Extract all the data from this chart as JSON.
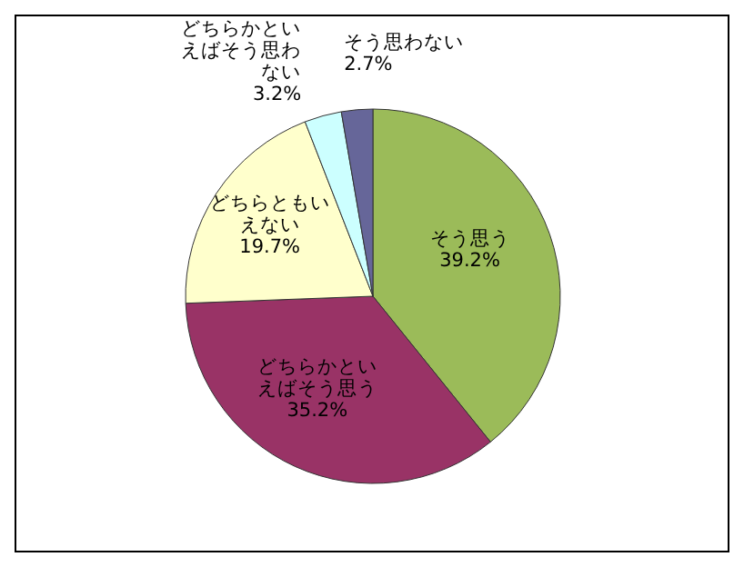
{
  "chart_data": {
    "type": "pie",
    "categories": [
      "そう思う",
      "どちらかといえばそう思う",
      "どちらともいえない",
      "どちらかといえばそう思わない",
      "そう思わない"
    ],
    "values": [
      39.2,
      35.2,
      19.7,
      3.2,
      2.7
    ],
    "value_labels": [
      "39.2%",
      "35.2%",
      "19.7%",
      "3.2%",
      "2.7%"
    ],
    "colors": [
      "#9bbb59",
      "#993366",
      "#ffffcc",
      "#ccffff",
      "#666699"
    ],
    "legend": false
  }
}
